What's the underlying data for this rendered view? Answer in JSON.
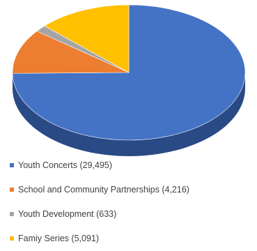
{
  "chart_data": {
    "type": "pie",
    "style": "3d",
    "slices": [
      {
        "label": "Youth Concerts (29,495)",
        "value": 29495,
        "color": "#4472c4",
        "side_color": "#2a4a86"
      },
      {
        "label": "School and Community Partnerships (4,216)",
        "value": 4216,
        "color": "#ed7d31",
        "side_color": "#a9551f"
      },
      {
        "label": "Youth Development (633)",
        "value": 633,
        "color": "#a5a5a5",
        "side_color": "#7a7a7a"
      },
      {
        "label": "Famiy Series (5,091)",
        "value": 5091,
        "color": "#ffc000",
        "side_color": "#b88a00"
      }
    ],
    "legend_position": "bottom"
  }
}
